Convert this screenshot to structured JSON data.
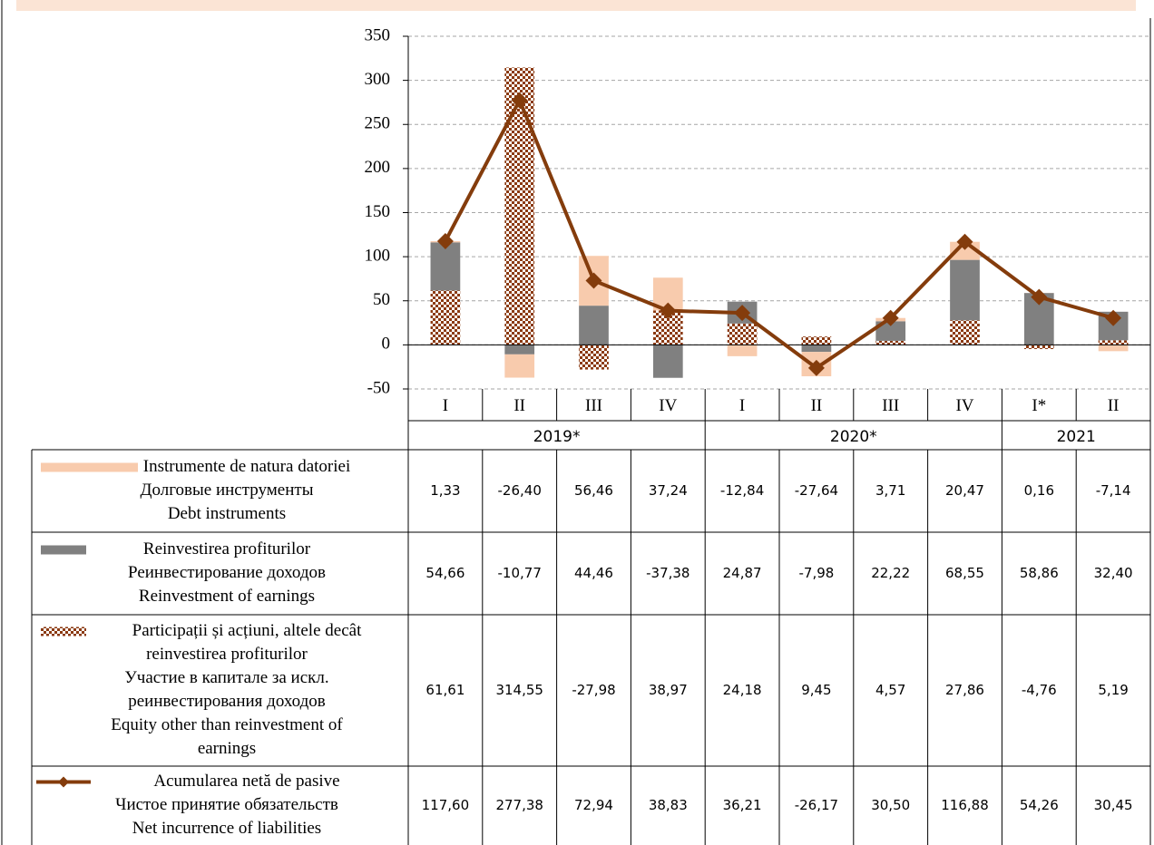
{
  "chart_data": {
    "type": "bar",
    "categories": [
      "I",
      "II",
      "III",
      "IV",
      "I",
      "II",
      "III",
      "IV",
      "I*",
      "II"
    ],
    "groups": [
      {
        "label": "2019*",
        "span": 4
      },
      {
        "label": "2020*",
        "span": 4
      },
      {
        "label": "2021",
        "span": 2
      }
    ],
    "ylim": [
      -50,
      350
    ],
    "yticks": [
      -50,
      0,
      50,
      100,
      150,
      200,
      250,
      300,
      350
    ],
    "grid": true,
    "stacked": true,
    "series": [
      {
        "name": [
          "Instrumente de natura datoriei",
          "Долговые инструменты",
          "Debt instruments"
        ],
        "color": "#f8cbad",
        "fill": "solid",
        "values": [
          1.33,
          -26.4,
          56.46,
          37.24,
          -12.84,
          -27.64,
          3.71,
          20.47,
          0.16,
          -7.14
        ],
        "value_labels": [
          "1,33",
          "-26,40",
          "56,46",
          "37,24",
          "-12,84",
          "-27,64",
          "3,71",
          "20,47",
          "0,16",
          "-7,14"
        ]
      },
      {
        "name": [
          "Reinvestirea profiturilor",
          "Реинвестирование доходов",
          "Reinvestment of earnings"
        ],
        "color": "#808080",
        "fill": "solid",
        "values": [
          54.66,
          -10.77,
          44.46,
          -37.38,
          24.87,
          -7.98,
          22.22,
          68.55,
          58.86,
          32.4
        ],
        "value_labels": [
          "54,66",
          "-10,77",
          "44,46",
          "-37,38",
          "24,87",
          "-7,98",
          "22,22",
          "68,55",
          "58,86",
          "32,40"
        ]
      },
      {
        "name": [
          "Participații și acțiuni, altele decât",
          "reinvestirea profiturilor",
          "Участие в капитале за искл.",
          "реинвестирования доходов",
          "Equity other than reinvestment of",
          "earnings"
        ],
        "color": "#8b3a12",
        "fill": "checker",
        "values": [
          61.61,
          314.55,
          -27.98,
          38.97,
          24.18,
          9.45,
          4.57,
          27.86,
          -4.76,
          5.19
        ],
        "value_labels": [
          "61,61",
          "314,55",
          "-27,98",
          "38,97",
          "24,18",
          "9,45",
          "4,57",
          "27,86",
          "-4,76",
          "5,19"
        ]
      },
      {
        "name": [
          "Acumularea netă de pasive",
          "Чистое принятие обязательств",
          "Net incurrence of liabilities"
        ],
        "color": "#843c0c",
        "type": "line",
        "values": [
          117.6,
          277.38,
          72.94,
          38.83,
          36.21,
          -26.17,
          30.5,
          116.88,
          54.26,
          30.45
        ],
        "value_labels": [
          "117,60",
          "277,38",
          "72,94",
          "38,83",
          "36,21",
          "-26,17",
          "30,50",
          "116,88",
          "54,26",
          "30,45"
        ]
      }
    ]
  }
}
